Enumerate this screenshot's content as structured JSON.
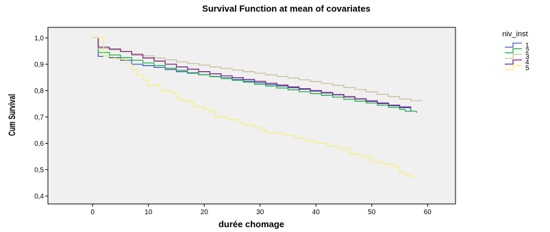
{
  "chart_data": {
    "type": "line",
    "step": true,
    "title": "Survival Function at mean of covariates",
    "xlabel": "durée chomage",
    "ylabel": "Cum Survival",
    "xlim": [
      -8,
      65
    ],
    "ylim": [
      0.37,
      1.04
    ],
    "xticks": [
      0,
      10,
      20,
      30,
      40,
      50,
      60
    ],
    "xtick_labels": [
      "0",
      "10",
      "20",
      "30",
      "40",
      "50",
      "60"
    ],
    "yticks": [
      0.4,
      0.5,
      0.6,
      0.7,
      0.8,
      0.9,
      1.0
    ],
    "ytick_labels": [
      "0,4",
      "0,5",
      "0,6",
      "0,7",
      "0,8",
      "0,9",
      "1,0"
    ],
    "grid": false,
    "plot_background": "#f0f0f0",
    "legend": {
      "title": "niv_inst",
      "position": "right"
    },
    "series": [
      {
        "name": "1",
        "color": "#3a5cc4",
        "x": [
          0,
          1,
          3,
          5,
          7,
          9,
          11,
          13,
          15,
          17,
          19,
          21,
          23,
          25,
          27,
          29,
          31,
          33,
          35,
          37,
          39,
          41,
          43,
          45,
          47,
          49,
          51,
          53,
          55,
          57
        ],
        "y": [
          1.0,
          0.93,
          0.925,
          0.915,
          0.9,
          0.895,
          0.888,
          0.88,
          0.872,
          0.866,
          0.86,
          0.854,
          0.848,
          0.842,
          0.836,
          0.83,
          0.823,
          0.817,
          0.811,
          0.805,
          0.798,
          0.791,
          0.784,
          0.776,
          0.768,
          0.759,
          0.751,
          0.743,
          0.735,
          0.72
        ]
      },
      {
        "name": "2",
        "color": "#22b04a",
        "x": [
          0,
          1,
          3,
          5,
          7,
          9,
          11,
          13,
          15,
          17,
          19,
          21,
          23,
          25,
          27,
          29,
          31,
          33,
          35,
          37,
          39,
          41,
          43,
          45,
          47,
          49,
          51,
          53,
          55,
          56,
          58
        ],
        "y": [
          1.0,
          0.945,
          0.935,
          0.925,
          0.915,
          0.905,
          0.895,
          0.885,
          0.877,
          0.868,
          0.86,
          0.853,
          0.846,
          0.839,
          0.832,
          0.824,
          0.817,
          0.81,
          0.803,
          0.796,
          0.789,
          0.782,
          0.775,
          0.767,
          0.76,
          0.753,
          0.745,
          0.737,
          0.729,
          0.722,
          0.715
        ]
      },
      {
        "name": "3",
        "color": "#c8c09a",
        "x": [
          0,
          1,
          3,
          5,
          7,
          9,
          11,
          13,
          15,
          17,
          19,
          21,
          23,
          25,
          27,
          29,
          31,
          33,
          35,
          37,
          39,
          41,
          43,
          45,
          47,
          49,
          51,
          53,
          55,
          57,
          59
        ],
        "y": [
          1.0,
          0.96,
          0.955,
          0.948,
          0.94,
          0.932,
          0.924,
          0.917,
          0.91,
          0.903,
          0.897,
          0.89,
          0.884,
          0.878,
          0.872,
          0.866,
          0.86,
          0.854,
          0.848,
          0.841,
          0.834,
          0.827,
          0.82,
          0.812,
          0.804,
          0.795,
          0.786,
          0.777,
          0.768,
          0.762,
          0.762
        ]
      },
      {
        "name": "4",
        "color": "#7a1f7a",
        "x": [
          0,
          1,
          3,
          5,
          7,
          9,
          11,
          13,
          15,
          17,
          19,
          21,
          23,
          25,
          27,
          29,
          31,
          33,
          35,
          37,
          39,
          41,
          43,
          45,
          47,
          49,
          51,
          53,
          55,
          57
        ],
        "y": [
          1.0,
          0.965,
          0.958,
          0.948,
          0.936,
          0.924,
          0.912,
          0.9,
          0.89,
          0.881,
          0.872,
          0.864,
          0.856,
          0.849,
          0.842,
          0.835,
          0.828,
          0.821,
          0.814,
          0.807,
          0.8,
          0.793,
          0.785,
          0.777,
          0.769,
          0.761,
          0.753,
          0.745,
          0.738,
          0.735
        ]
      },
      {
        "name": "5",
        "color": "#f5f07a",
        "x": [
          0,
          2,
          4,
          6,
          7,
          8,
          9,
          10,
          12,
          14,
          15,
          16,
          18,
          20,
          21,
          22,
          24,
          26,
          27,
          28,
          29,
          30,
          31,
          32,
          34,
          36,
          38,
          40,
          42,
          44,
          46,
          48,
          50,
          52,
          54,
          55,
          56,
          57,
          58
        ],
        "y": [
          1.0,
          0.93,
          0.92,
          0.9,
          0.88,
          0.86,
          0.84,
          0.82,
          0.8,
          0.79,
          0.77,
          0.76,
          0.74,
          0.73,
          0.72,
          0.7,
          0.69,
          0.68,
          0.67,
          0.67,
          0.66,
          0.65,
          0.64,
          0.64,
          0.63,
          0.62,
          0.61,
          0.6,
          0.59,
          0.58,
          0.56,
          0.55,
          0.53,
          0.52,
          0.51,
          0.49,
          0.48,
          0.47,
          0.47
        ]
      }
    ]
  }
}
